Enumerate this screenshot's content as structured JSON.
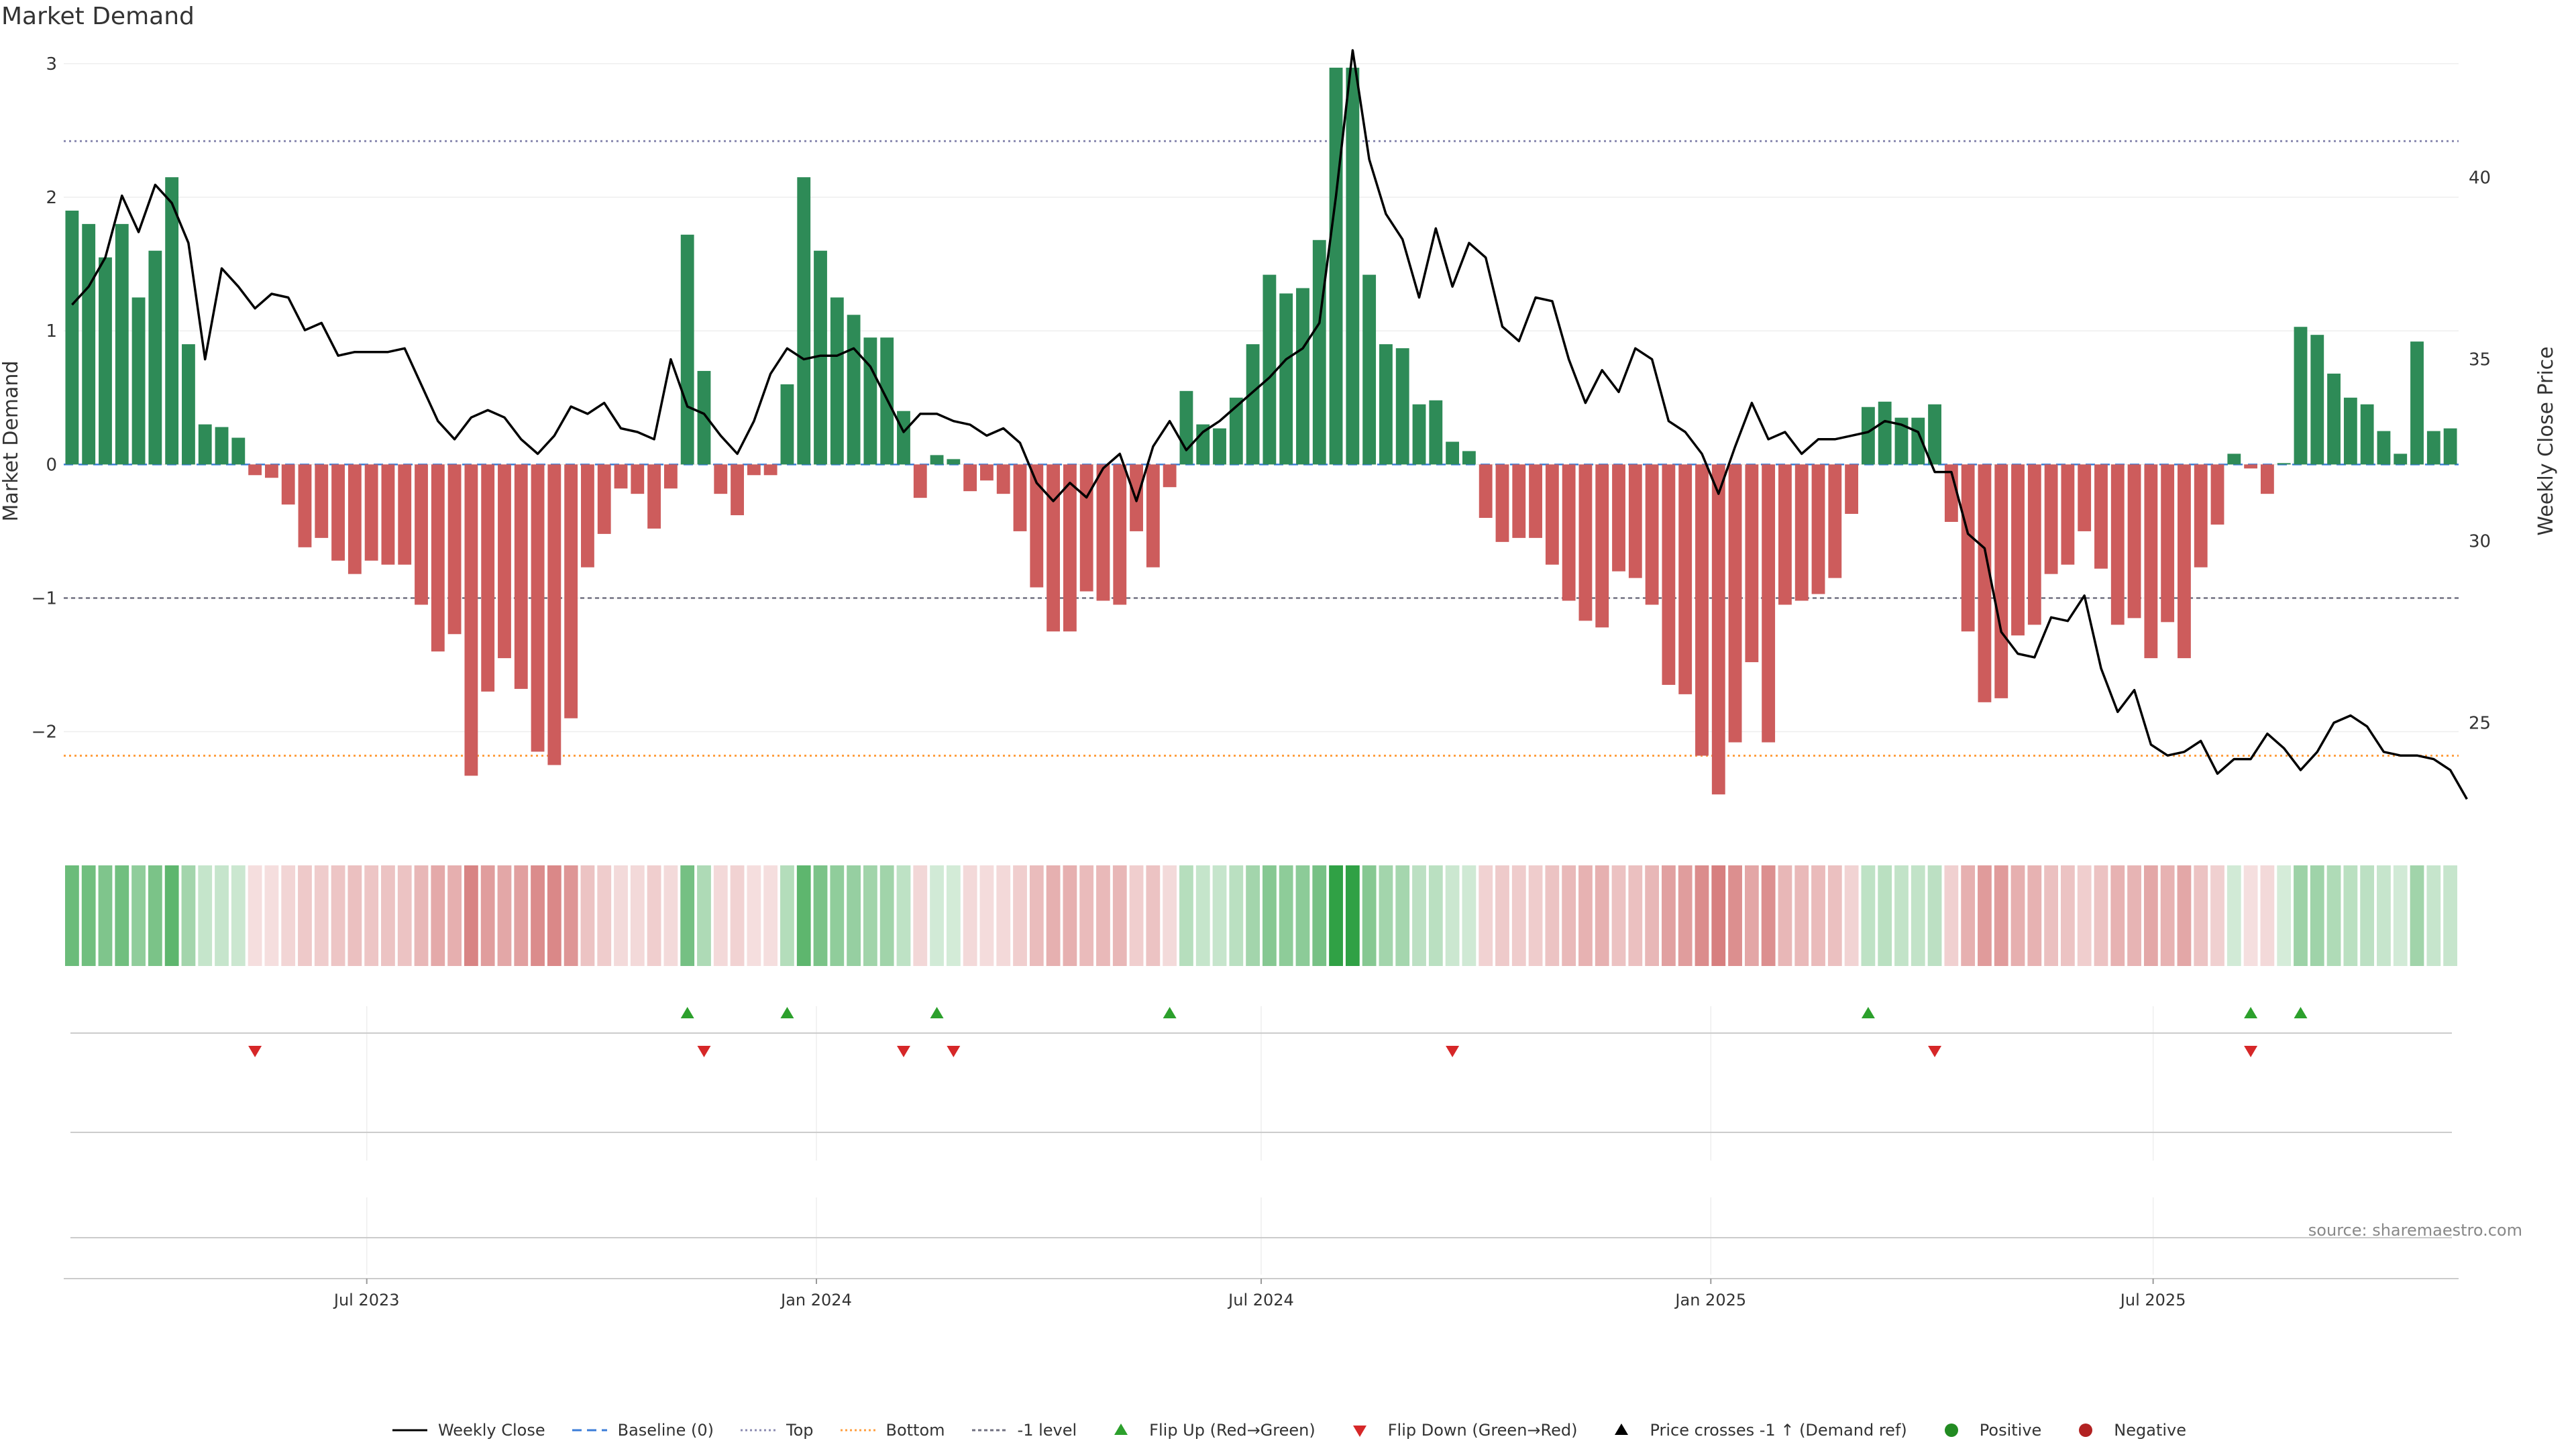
{
  "chart_data": {
    "type": "bar",
    "title": "Market Demand",
    "ylabel": "Market Demand",
    "y2label": "Weekly Close Price",
    "ylim": [
      -2.75,
      3.1
    ],
    "y2lim": [
      22,
      43.5
    ],
    "yticks": [
      3,
      2,
      1,
      0,
      -1,
      -2
    ],
    "ytick_labels": [
      "3",
      "2",
      "1",
      "0",
      "−1",
      "−2"
    ],
    "y2ticks": [
      40,
      35,
      30,
      25
    ],
    "y2tick_labels": [
      "40",
      "35",
      "30",
      "25"
    ],
    "x_start": "2023-02-27",
    "x_end": "2025-11-03",
    "xticks": [
      "2023-07-01",
      "2024-01-01",
      "2024-07-01",
      "2025-01-01",
      "2025-07-01"
    ],
    "xtick_labels": [
      "Jul 2023",
      "Jan 2024",
      "Jul 2024",
      "Jan 2025",
      "Jul 2025"
    ],
    "top_level": 2.42,
    "bottom_level": -2.18,
    "minus_one_level": -1,
    "demand": [
      1.9,
      1.8,
      1.55,
      1.8,
      1.25,
      1.6,
      2.15,
      0.9,
      0.3,
      0.28,
      0.2,
      -0.08,
      -0.1,
      -0.3,
      -0.62,
      -0.55,
      -0.72,
      -0.82,
      -0.72,
      -0.75,
      -0.75,
      -1.05,
      -1.4,
      -1.27,
      -2.33,
      -1.7,
      -1.45,
      -1.68,
      -2.15,
      -2.25,
      -1.9,
      -0.77,
      -0.52,
      -0.18,
      -0.22,
      -0.48,
      -0.18,
      1.72,
      0.7,
      -0.22,
      -0.38,
      -0.08,
      -0.08,
      0.6,
      2.15,
      1.6,
      1.25,
      1.12,
      0.95,
      0.95,
      0.4,
      -0.25,
      0.07,
      0.04,
      -0.2,
      -0.12,
      -0.22,
      -0.5,
      -0.92,
      -1.25,
      -1.25,
      -0.95,
      -1.02,
      -1.05,
      -0.5,
      -0.77,
      -0.17,
      0.55,
      0.3,
      0.27,
      0.5,
      0.9,
      1.42,
      1.28,
      1.32,
      1.68,
      2.97,
      2.97,
      1.42,
      0.9,
      0.87,
      0.45,
      0.48,
      0.17,
      0.1,
      -0.4,
      -0.58,
      -0.55,
      -0.55,
      -0.75,
      -1.02,
      -1.17,
      -1.22,
      -0.8,
      -0.85,
      -1.05,
      -1.65,
      -1.72,
      -2.18,
      -2.47,
      -2.08,
      -1.48,
      -2.08,
      -1.05,
      -1.02,
      -0.97,
      -0.85,
      -0.37,
      0.43,
      0.47,
      0.35,
      0.35,
      0.45,
      -0.43,
      -1.25,
      -1.78,
      -1.75,
      -1.28,
      -1.2,
      -0.82,
      -0.75,
      -0.5,
      -0.78,
      -1.2,
      -1.15,
      -1.45,
      -1.18,
      -1.45,
      -0.77,
      -0.45,
      0.08,
      -0.03,
      -0.22,
      0.0,
      1.03,
      0.97,
      0.68,
      0.5,
      0.45,
      0.25,
      0.08,
      0.92,
      0.25,
      0.27
    ],
    "price": [
      36.5,
      37.0,
      37.8,
      39.5,
      38.5,
      39.8,
      39.3,
      38.2,
      35.0,
      37.5,
      37.0,
      36.4,
      36.8,
      36.7,
      35.8,
      36.0,
      35.1,
      35.2,
      35.2,
      35.2,
      35.3,
      34.3,
      33.3,
      32.8,
      33.4,
      33.6,
      33.4,
      32.8,
      32.4,
      32.9,
      33.7,
      33.5,
      33.8,
      33.1,
      33.0,
      32.8,
      35.0,
      33.7,
      33.5,
      32.9,
      32.4,
      33.3,
      34.6,
      35.3,
      35.0,
      35.1,
      35.1,
      35.3,
      34.8,
      33.9,
      33.0,
      33.5,
      33.5,
      33.3,
      33.2,
      32.9,
      33.1,
      32.7,
      31.6,
      31.1,
      31.6,
      31.2,
      32.0,
      32.4,
      31.1,
      32.6,
      33.3,
      32.5,
      33.0,
      33.3,
      33.7,
      34.1,
      34.5,
      35.0,
      35.3,
      36.0,
      39.5,
      43.5,
      40.5,
      39.0,
      38.3,
      36.7,
      38.6,
      37.0,
      38.2,
      37.8,
      35.9,
      35.5,
      36.7,
      36.6,
      35.0,
      33.8,
      34.7,
      34.1,
      35.3,
      35.0,
      33.3,
      33.0,
      32.4,
      31.3,
      32.6,
      33.8,
      32.8,
      33.0,
      32.4,
      32.8,
      32.8,
      32.9,
      33.0,
      33.3,
      33.2,
      33.0,
      31.9,
      31.9,
      30.2,
      29.8,
      27.5,
      26.9,
      26.8,
      27.9,
      27.8,
      28.5,
      26.5,
      25.3,
      25.9,
      24.4,
      24.1,
      24.2,
      24.5,
      23.6,
      24.0,
      24.0,
      24.7,
      24.3,
      23.7,
      24.2,
      25.0,
      25.2,
      24.9,
      24.2,
      24.1,
      24.1,
      24.0,
      23.7,
      22.9
    ],
    "flip_up": [
      37,
      43,
      52,
      66,
      108,
      131,
      134
    ],
    "flip_down": [
      11,
      38,
      50,
      53,
      83,
      112,
      131
    ],
    "series": [
      {
        "name": "Weekly Close",
        "values_key": "price"
      },
      {
        "name": "Market Demand",
        "values_key": "demand"
      }
    ]
  },
  "legend": {
    "weekly_close": "Weekly Close",
    "baseline": "Baseline (0)",
    "top": "Top",
    "bottom": "Bottom",
    "minus_one": "-1 level",
    "flip_up": "Flip Up (Red→Green)",
    "flip_down": "Flip Down (Green→Red)",
    "price_cross": "Price crosses -1 ↑ (Demand ref)",
    "positive": "Positive",
    "negative": "Negative"
  },
  "colors": {
    "positive": "#2e8b57",
    "negative": "#cd5c5c",
    "price": "#000000",
    "top": "#8a8ab0",
    "bottom": "#ff9f40",
    "minus_one": "#707080",
    "baseline": "#3b7dd8",
    "flip_up": "#2ca02c",
    "flip_down": "#d62728",
    "cross": "#000000",
    "positive_dot": "#228b22",
    "negative_dot": "#b22222"
  },
  "source": "source: sharemaestro.com"
}
